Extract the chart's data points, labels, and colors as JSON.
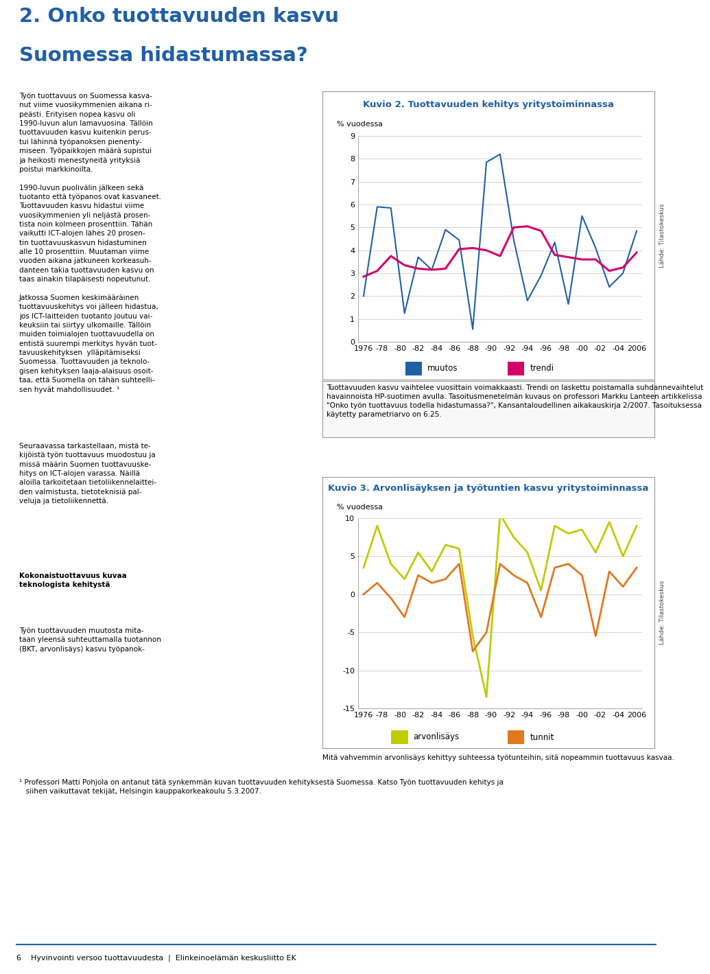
{
  "title1": "Kuvio 2. Tuottavuuden kehitys yritystoiminnassa",
  "title2": "Kuvio 3. Arvonlisäyksen ja työtuntien kasvu yritystoiminnassa",
  "ylabel1": "% vuodessa",
  "ylabel2": "% vuodessa",
  "xlabels": [
    "1976",
    "-78",
    "-80",
    "-82",
    "-84",
    "-86",
    "-88",
    "-90",
    "-92",
    "-94",
    "-96",
    "-98",
    "-00",
    "-02",
    "-04",
    "2006"
  ],
  "chart1_muutos": [
    2.0,
    5.9,
    5.85,
    1.25,
    3.7,
    3.15,
    4.9,
    4.45,
    0.55,
    7.85,
    8.2,
    4.45,
    1.8,
    2.9,
    4.35,
    1.65,
    5.5,
    4.1,
    2.4,
    3.0,
    4.85
  ],
  "chart1_trendi": [
    2.85,
    3.1,
    3.75,
    3.35,
    3.2,
    3.15,
    3.2,
    4.05,
    4.1,
    4.0,
    3.75,
    5.0,
    5.05,
    4.85,
    3.8,
    3.7,
    3.6,
    3.6,
    3.1,
    3.25,
    3.9
  ],
  "chart1_ylim": [
    0,
    9
  ],
  "chart1_yticks": [
    0,
    1,
    2,
    3,
    4,
    5,
    6,
    7,
    8,
    9
  ],
  "chart2_arvonlisays": [
    3.5,
    9.0,
    4.0,
    2.0,
    5.5,
    3.0,
    6.5,
    6.0,
    -5.5,
    -13.5,
    10.5,
    7.5,
    5.5,
    0.5,
    9.0,
    8.0,
    8.5,
    5.5,
    9.5,
    5.0,
    9.0
  ],
  "chart2_tunnit": [
    0.0,
    1.5,
    -0.5,
    -3.0,
    2.5,
    1.5,
    2.0,
    4.0,
    -7.5,
    -5.0,
    4.0,
    2.5,
    1.5,
    -3.0,
    3.5,
    4.0,
    2.5,
    -5.5,
    3.0,
    1.0,
    3.5
  ],
  "chart2_ylim": [
    -15,
    10
  ],
  "chart2_yticks": [
    -15,
    -10,
    -5,
    0,
    5,
    10
  ],
  "muutos_color": "#1F5FA6",
  "trendi_color": "#D4006A",
  "arvonlisays_color": "#BFCC00",
  "tunnit_color": "#E07820",
  "source_text": "Lähde: Tilastokeskus",
  "footnote1": "Tuottavuuden kasvu vaihtelee vuosittain voimakkaasti. Trendi on laskettu poistamalla suhdannevaihtelut havainnoista HP-suotimen avulla. Tasoitusmenetelmän kuvaus on professori Markku Lanteen artikkelissa „Onko työn tuottavuus todella hidastumassa?”, Kansantaloudellinen aikakauskirja 2/2007. Tasoituksessa käytetty parametriarvo on 6.25.",
  "footnote2": "Mitä vahvemmin arvonlisäys kehittyy suhteessa työtunteihin, sitä nopeammin tuottavuus kasvaa.",
  "main_title_line1": "2. Onko tuottavuuden kasvu",
  "main_title_line2": "Suomessa hidastumassa?",
  "page_info": "6    Hyvinvointi versoo tuottavuudesta  |  Elinkeinoelämän keskusliitto EK",
  "footnote_bottom": "¹ Professori Matti Pohjola on antanut tätä synkemmän kuvan tuottavuuden kehityksestä Suomessa. Katso Työn tuottavuuden kehitys ja siihen vaikuttavat tekijät, Helsingin kauppakorkeakoulu 5.3.2007."
}
